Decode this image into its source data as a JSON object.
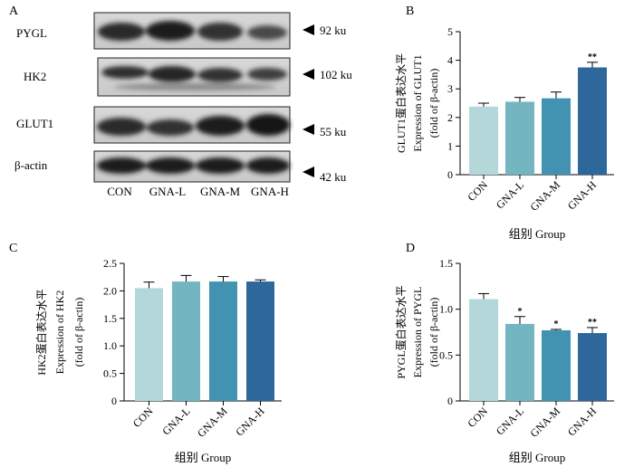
{
  "panel_letters": {
    "a": "A",
    "b": "B",
    "c": "C",
    "d": "D"
  },
  "blot": {
    "rows": [
      {
        "label": "PYGL",
        "size": "92 ku"
      },
      {
        "label": "HK2",
        "size": "102 ku"
      },
      {
        "label": "GLUT1",
        "size": "55 ku"
      },
      {
        "label": "β-actin",
        "size": "42 ku"
      }
    ],
    "lanes": [
      "CON",
      "GNA-L",
      "GNA-M",
      "GNA-H"
    ]
  },
  "bar_colors": [
    "#b4d7da",
    "#73b5c0",
    "#4293b1",
    "#2d679b"
  ],
  "chart_data": [
    {
      "panel": "B",
      "type": "bar",
      "categories": [
        "CON",
        "GNA-L",
        "GNA-M",
        "GNA-H"
      ],
      "values": [
        2.38,
        2.55,
        2.67,
        3.75
      ],
      "errors": [
        0.12,
        0.15,
        0.22,
        0.18
      ],
      "significance": [
        "",
        "",
        "",
        "**"
      ],
      "ylabel_lines": [
        "GLUT1蛋白表达水平",
        "Expression of GLUT1",
        "(fold of β-actin)"
      ],
      "xlabel": "组别 Group",
      "ylim": [
        0,
        5
      ],
      "yticks": [
        0,
        1,
        2,
        3,
        4,
        5
      ],
      "ytick_labels": [
        "0",
        "1",
        "2",
        "3",
        "4",
        "5"
      ]
    },
    {
      "panel": "C",
      "type": "bar",
      "categories": [
        "CON",
        "GNA-L",
        "GNA-M",
        "GNA-H"
      ],
      "values": [
        2.05,
        2.17,
        2.17,
        2.17
      ],
      "errors": [
        0.11,
        0.11,
        0.09,
        0.03
      ],
      "significance": [
        "",
        "",
        "",
        ""
      ],
      "ylabel_lines": [
        "HK2蛋白表达水平",
        "Expression of HK2",
        "(fold of β-actin)"
      ],
      "xlabel": "组别 Group",
      "ylim": [
        0,
        2.5
      ],
      "yticks": [
        0,
        0.5,
        1,
        1.5,
        2,
        2.5
      ],
      "ytick_labels": [
        "0",
        "0.5",
        "1.0",
        "1.5",
        "2.0",
        "2.5"
      ]
    },
    {
      "panel": "D",
      "type": "bar",
      "categories": [
        "CON",
        "GNA-L",
        "GNA-M",
        "GNA-H"
      ],
      "values": [
        1.11,
        0.84,
        0.77,
        0.74
      ],
      "errors": [
        0.06,
        0.08,
        0.01,
        0.06
      ],
      "significance": [
        "",
        "*",
        "*",
        "**"
      ],
      "ylabel_lines": [
        "PYGL蛋白表达水平",
        "Expression of PYGL",
        "(fold of β-actin)"
      ],
      "xlabel": "组别 Group",
      "ylim": [
        0,
        1.5
      ],
      "yticks": [
        0,
        0.5,
        1,
        1.5
      ],
      "ytick_labels": [
        "0",
        "0.5",
        "1.0",
        "1.5"
      ]
    }
  ]
}
